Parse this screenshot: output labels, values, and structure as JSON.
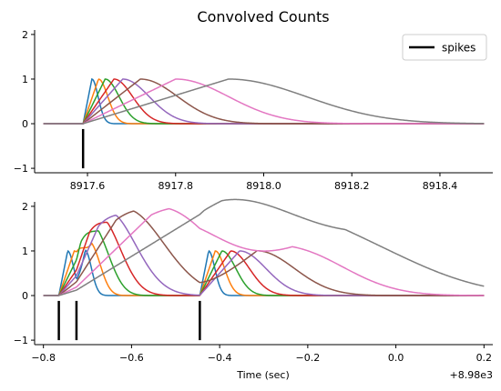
{
  "chart_data": [
    {
      "type": "line",
      "title": "Convolved Counts",
      "xlabel": "",
      "ylabel": "",
      "xlim": [
        8917.48,
        8918.52
      ],
      "ylim": [
        -1.1,
        2.1
      ],
      "xticks": [
        8917.6,
        8917.8,
        8918.0,
        8918.2,
        8918.4
      ],
      "xtick_labels": [
        "8917.6",
        "8917.8",
        "8918.0",
        "8918.2",
        "8918.4"
      ],
      "yticks": [
        -1,
        0,
        1,
        2
      ],
      "ytick_labels": [
        "−1",
        "0",
        "1",
        "2"
      ],
      "grid": false,
      "legend": {
        "location": "top-right",
        "entries": [
          {
            "label": "spikes",
            "color": "#000000"
          }
        ]
      },
      "x_range_lines": [
        8917.5,
        8918.5
      ],
      "spikes": [
        {
          "x": 8917.59,
          "y_from": -1,
          "y_to": -0.12
        }
      ],
      "kernels": [
        {
          "color": "#1f77b4",
          "onset": 8917.59,
          "peak_delay": 0.02,
          "width": 0.02
        },
        {
          "color": "#ff7f0e",
          "onset": 8917.59,
          "peak_delay": 0.035,
          "width": 0.03
        },
        {
          "color": "#2ca02c",
          "onset": 8917.59,
          "peak_delay": 0.05,
          "width": 0.045
        },
        {
          "color": "#d62728",
          "onset": 8917.59,
          "peak_delay": 0.07,
          "width": 0.06
        },
        {
          "color": "#9467bd",
          "onset": 8917.59,
          "peak_delay": 0.09,
          "width": 0.085
        },
        {
          "color": "#8c564b",
          "onset": 8917.59,
          "peak_delay": 0.13,
          "width": 0.12
        },
        {
          "color": "#e377c2",
          "onset": 8917.59,
          "peak_delay": 0.21,
          "width": 0.17
        },
        {
          "color": "#7f7f7f",
          "onset": 8917.59,
          "peak_delay": 0.33,
          "width": 0.25
        }
      ]
    },
    {
      "type": "line",
      "title": "",
      "xlabel": "Time (sec)",
      "ylabel": "",
      "offset_text": "+8.98e3",
      "xlim": [
        -0.82,
        0.22
      ],
      "ylim": [
        -1.1,
        2.1
      ],
      "xticks": [
        -0.8,
        -0.6,
        -0.4,
        -0.2,
        0.0,
        0.2
      ],
      "xtick_labels": [
        "−0.8",
        "−0.6",
        "−0.4",
        "−0.2",
        "0.0",
        "0.2"
      ],
      "yticks": [
        -1,
        0,
        1,
        2
      ],
      "ytick_labels": [
        "−1",
        "0",
        "1",
        "2"
      ],
      "grid": false,
      "x_range_lines": [
        -0.8,
        0.2
      ],
      "spikes": [
        {
          "x": -0.765,
          "y_from": -1,
          "y_to": -0.12
        },
        {
          "x": -0.725,
          "y_from": -1,
          "y_to": -0.12
        },
        {
          "x": -0.445,
          "y_from": -1,
          "y_to": -0.12
        }
      ],
      "kernels": [
        {
          "color": "#1f77b4",
          "onsets": [
            -0.765,
            -0.725,
            -0.445
          ],
          "peak_delay": 0.02,
          "width": 0.02
        },
        {
          "color": "#ff7f0e",
          "onsets": [
            -0.765,
            -0.725,
            -0.445
          ],
          "peak_delay": 0.035,
          "width": 0.03
        },
        {
          "color": "#2ca02c",
          "onsets": [
            -0.765,
            -0.725,
            -0.445
          ],
          "peak_delay": 0.05,
          "width": 0.045
        },
        {
          "color": "#d62728",
          "onsets": [
            -0.765,
            -0.725,
            -0.445
          ],
          "peak_delay": 0.07,
          "width": 0.06
        },
        {
          "color": "#9467bd",
          "onsets": [
            -0.765,
            -0.725,
            -0.445
          ],
          "peak_delay": 0.09,
          "width": 0.085
        },
        {
          "color": "#8c564b",
          "onsets": [
            -0.765,
            -0.725,
            -0.445
          ],
          "peak_delay": 0.13,
          "width": 0.12
        },
        {
          "color": "#e377c2",
          "onsets": [
            -0.765,
            -0.725,
            -0.445
          ],
          "peak_delay": 0.21,
          "width": 0.17
        },
        {
          "color": "#7f7f7f",
          "onsets": [
            -0.765,
            -0.725,
            -0.445
          ],
          "peak_delay": 0.33,
          "width": 0.25
        }
      ]
    }
  ]
}
